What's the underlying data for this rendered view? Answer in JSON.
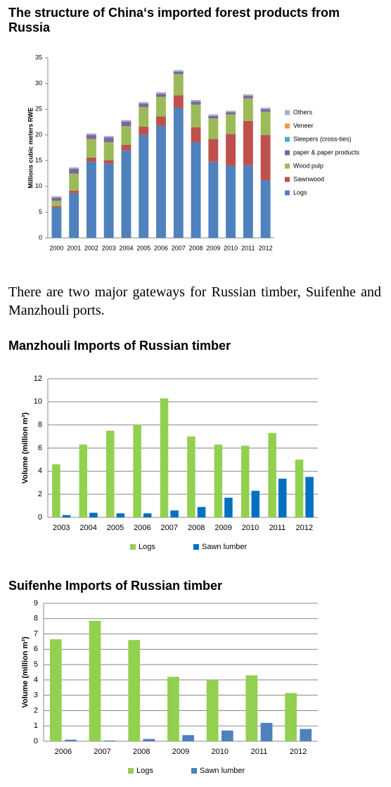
{
  "chart_data": [
    {
      "type": "bar",
      "stacked": true,
      "title": "The structure of China‘s imported forest products from Russia",
      "y_label": "Millions cubic meters RWE",
      "categories": [
        "2000",
        "2001",
        "2002",
        "2003",
        "2004",
        "2005",
        "2006",
        "2007",
        "2008",
        "2009",
        "2010",
        "2011",
        "2012"
      ],
      "series": [
        {
          "name": "Logs",
          "color": "#4f81bd",
          "values": [
            5.9,
            8.7,
            14.8,
            14.4,
            17,
            20,
            21.8,
            25.3,
            18.6,
            14.8,
            14,
            14.1,
            11.2
          ]
        },
        {
          "name": "Sawnwood",
          "color": "#c0504d",
          "values": [
            0.3,
            0.5,
            0.8,
            0.7,
            1.1,
            1.6,
            1.8,
            2.4,
            2.9,
            4.4,
            6.2,
            8.6,
            8.8
          ]
        },
        {
          "name": "Wood pulp",
          "color": "#9bbb59",
          "values": [
            1,
            3.3,
            3.6,
            3.5,
            3.6,
            3.8,
            3.8,
            4.1,
            4.4,
            4,
            3.8,
            4.4,
            4.5
          ]
        },
        {
          "name": "paper & paper products",
          "color": "#8064a2",
          "values": [
            0.6,
            0.9,
            0.8,
            0.9,
            0.9,
            0.7,
            0.6,
            0.5,
            0.6,
            0.5,
            0.4,
            0.5,
            0.5
          ]
        },
        {
          "name": "Sleepers (cross-ties)",
          "color": "#4bacc6",
          "values": [
            0.05,
            0.05,
            0.05,
            0.05,
            0.05,
            0.05,
            0.05,
            0.05,
            0.05,
            0.05,
            0.05,
            0.05,
            0.05
          ]
        },
        {
          "name": "Veneer",
          "color": "#f79646",
          "values": [
            0.05,
            0.05,
            0.05,
            0.05,
            0.05,
            0.05,
            0.05,
            0.05,
            0.05,
            0.05,
            0.05,
            0.05,
            0.05
          ]
        },
        {
          "name": "Others",
          "color": "#95b3d7",
          "values": [
            0.2,
            0.2,
            0.2,
            0.2,
            0.2,
            0.2,
            0.2,
            0.2,
            0.2,
            0.2,
            0.2,
            0.2,
            0.2
          ]
        }
      ],
      "ylim": [
        0,
        35
      ],
      "yticks": [
        0,
        5,
        10,
        15,
        20,
        25,
        30,
        35
      ],
      "grid": false,
      "legend": "right"
    },
    {
      "type": "bar",
      "stacked": false,
      "title": "Manzhouli Imports of Russian timber",
      "y_label": "Volume (million m³)",
      "categories": [
        "2003",
        "2004",
        "2005",
        "2006",
        "2007",
        "2008",
        "2009",
        "2010",
        "2011",
        "2012"
      ],
      "series": [
        {
          "name": "Logs",
          "color": "#92d050",
          "values": [
            4.6,
            6.3,
            7.5,
            8,
            10.3,
            7,
            6.3,
            6.2,
            7.3,
            5
          ]
        },
        {
          "name": "Sawn lumber",
          "color": "#0070c0",
          "values": [
            0.2,
            0.4,
            0.35,
            0.35,
            0.6,
            0.9,
            1.7,
            2.3,
            3.35,
            3.5
          ]
        }
      ],
      "ylim": [
        0,
        12
      ],
      "yticks": [
        0,
        2,
        4,
        6,
        8,
        10,
        12
      ],
      "grid": true,
      "legend": "bottom"
    },
    {
      "type": "bar",
      "stacked": false,
      "title": "Suifenhe Imports of Russian timber",
      "y_label": "Volume (million m³)",
      "categories": [
        "2006",
        "2007",
        "2008",
        "2009",
        "2010",
        "2011",
        "2012"
      ],
      "series": [
        {
          "name": "Logs",
          "color": "#92d050",
          "values": [
            6.65,
            7.85,
            6.6,
            4.2,
            4,
            4.3,
            3.15
          ]
        },
        {
          "name": "Sawn lumber",
          "color": "#4f81bd",
          "values": [
            0.1,
            0.05,
            0.15,
            0.4,
            0.7,
            1.2,
            0.8
          ]
        }
      ],
      "ylim": [
        0,
        9
      ],
      "yticks": [
        0,
        1,
        2,
        3,
        4,
        5,
        6,
        7,
        8,
        9
      ],
      "grid": true,
      "legend": "bottom"
    }
  ],
  "paragraph": "There are two major gateways for Russian timber, Suifenhe and Manzhouli ports."
}
